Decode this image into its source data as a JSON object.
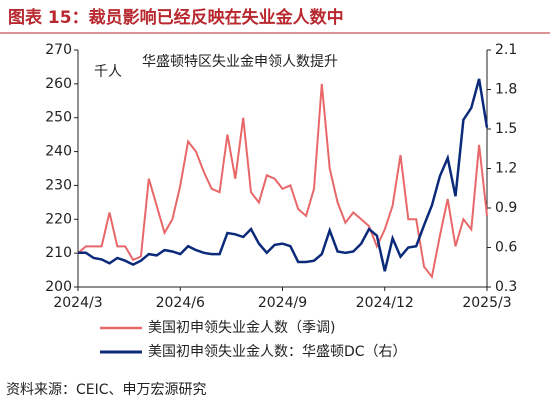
{
  "chart_data": {
    "type": "line",
    "title": "图表 15：裁员影响已经反映在失业金人数中",
    "annotation": "华盛顿特区失业金申领人数提升",
    "y_label": "千人",
    "source": "资料来源：CEIC、申万宏源研究",
    "categories": [
      "2024/3",
      null,
      null,
      null,
      null,
      null,
      null,
      null,
      null,
      null,
      null,
      null,
      null,
      "2024/6",
      null,
      null,
      null,
      null,
      null,
      null,
      null,
      null,
      null,
      null,
      null,
      null,
      "2024/9",
      null,
      null,
      null,
      null,
      null,
      null,
      null,
      null,
      null,
      null,
      null,
      null,
      "2024/12",
      null,
      null,
      null,
      null,
      null,
      null,
      null,
      null,
      null,
      null,
      null,
      null,
      "2025/3"
    ],
    "series": [
      {
        "name": "美国初申领失业金人数（季调)",
        "color": "#e8686a",
        "values": [
          210,
          212,
          212,
          212,
          222,
          212,
          212,
          208,
          209,
          232,
          224,
          216,
          220,
          230,
          243,
          240,
          234,
          229,
          228,
          245,
          232,
          250,
          228,
          225,
          233,
          232,
          229,
          230,
          223,
          221,
          229,
          260,
          235,
          225,
          219,
          222,
          220,
          218,
          212,
          217,
          224,
          239,
          220,
          220,
          206,
          203,
          215,
          226,
          212,
          220,
          217,
          242,
          221
        ]
      },
      {
        "name": "美国初申领失业金人数：华盛顿DC（右）",
        "color": "#0c2a7a",
        "axis": "y2",
        "values": [
          0.56,
          0.56,
          0.52,
          0.51,
          0.48,
          0.52,
          0.5,
          0.47,
          0.5,
          0.55,
          0.54,
          0.58,
          0.57,
          0.55,
          0.61,
          0.58,
          0.56,
          0.55,
          0.55,
          0.71,
          0.7,
          0.68,
          0.74,
          0.63,
          0.56,
          0.62,
          0.63,
          0.61,
          0.49,
          0.49,
          0.5,
          0.55,
          0.73,
          0.57,
          0.56,
          0.57,
          0.63,
          0.74,
          0.69,
          0.42,
          0.67,
          0.53,
          0.6,
          0.61,
          0.77,
          0.92,
          1.14,
          1.28,
          0.99,
          1.57,
          1.66,
          1.88,
          1.51
        ]
      }
    ],
    "ylim": [
      200,
      270
    ],
    "yticks": [
      200,
      210,
      220,
      230,
      240,
      250,
      260,
      270
    ],
    "y2lim": [
      0.3,
      2.1
    ],
    "y2ticks": [
      0.3,
      0.6,
      0.9,
      1.2,
      1.5,
      1.8,
      2.1
    ],
    "grid": false
  }
}
